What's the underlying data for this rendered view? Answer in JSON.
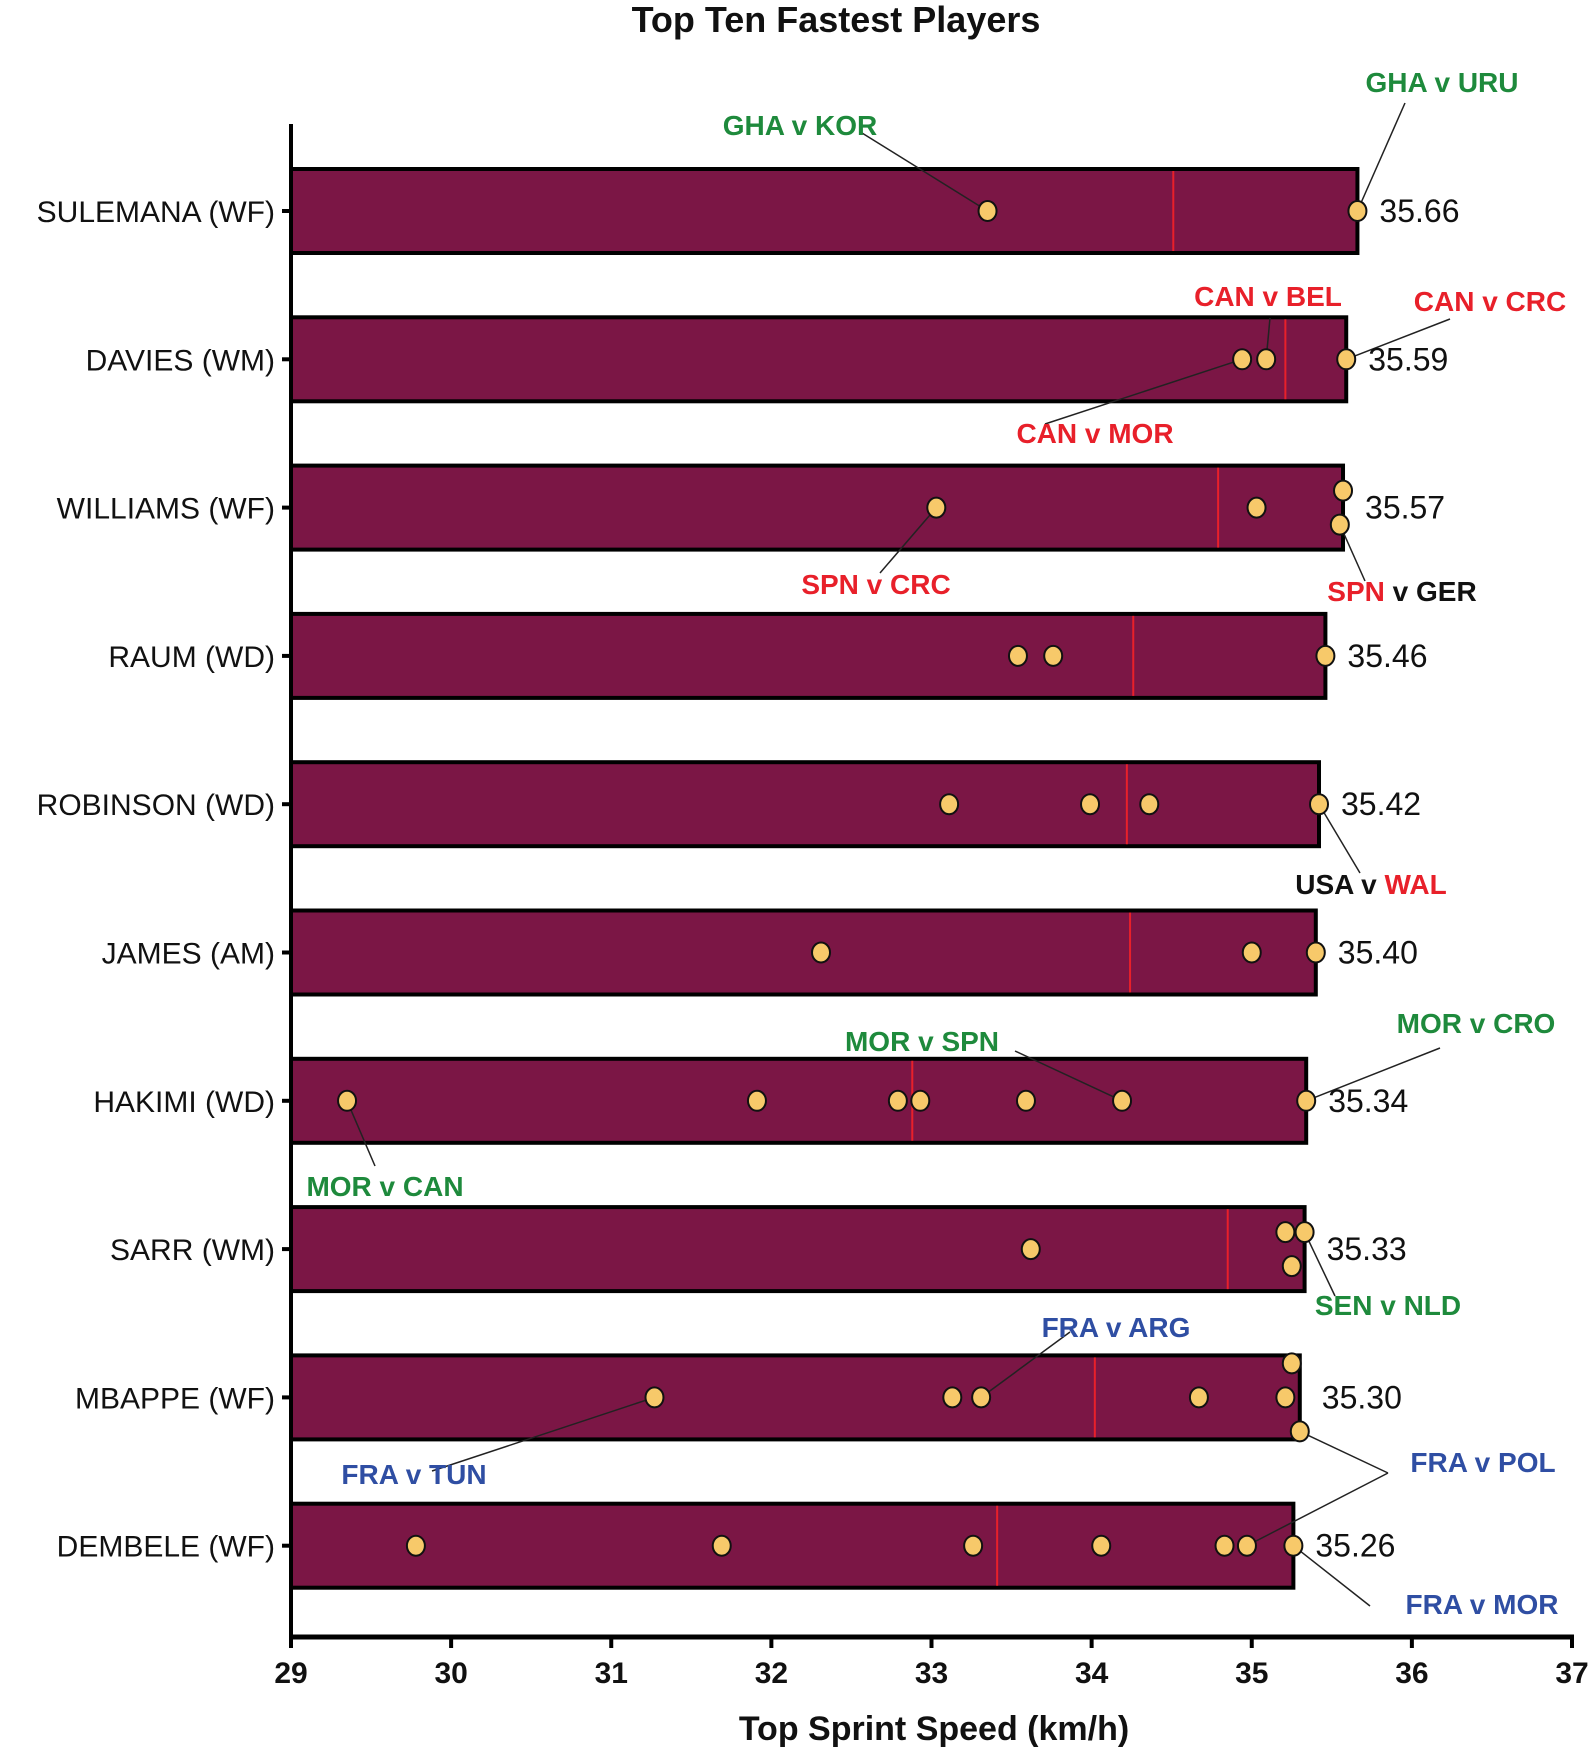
{
  "chart_data": {
    "type": "bar",
    "orientation": "horizontal",
    "title": "Top Ten Fastest Players",
    "xlabel": "Top Sprint Speed (km/h)",
    "ylabel": "",
    "xlim": [
      29,
      37
    ],
    "xticks": [
      29,
      30,
      31,
      32,
      33,
      34,
      35,
      36,
      37
    ],
    "grid": false,
    "legend": "none",
    "colors": {
      "bar": "#7b1645",
      "median_line": "#e8202a",
      "point": "#f7c96a",
      "green": "#1e8a3c",
      "red": "#e8202a",
      "blue": "#2f4ea3",
      "black": "#111111"
    },
    "categories": [
      "SULEMANA (WF)",
      "DAVIES (WM)",
      "WILLIAMS (WF)",
      "RAUM (WD)",
      "ROBINSON (WD)",
      "JAMES (AM)",
      "HAKIMI (WD)",
      "SARR (WM)",
      "MBAPPE (WF)",
      "DEMBELE (WF)"
    ],
    "values": [
      35.66,
      35.59,
      35.57,
      35.46,
      35.42,
      35.4,
      35.34,
      35.33,
      35.3,
      35.26
    ],
    "value_labels": [
      "35.66",
      "35.59",
      "35.57",
      "35.46",
      "35.42",
      "35.40",
      "35.34",
      "35.33",
      "35.30",
      "35.26"
    ],
    "medians": [
      34.51,
      35.21,
      34.79,
      34.26,
      34.22,
      34.24,
      32.88,
      34.85,
      34.02,
      33.41
    ],
    "match_points": [
      [
        {
          "v": 33.35
        },
        {
          "v": 35.66
        }
      ],
      [
        {
          "v": 34.94
        },
        {
          "v": 35.09
        },
        {
          "v": 35.59
        }
      ],
      [
        {
          "v": 33.03
        },
        {
          "v": 35.03
        },
        {
          "v": 35.57,
          "o": -1
        },
        {
          "v": 35.55,
          "o": 1
        }
      ],
      [
        {
          "v": 33.54
        },
        {
          "v": 33.76
        },
        {
          "v": 35.46
        }
      ],
      [
        {
          "v": 33.11
        },
        {
          "v": 33.99
        },
        {
          "v": 34.36
        },
        {
          "v": 35.42
        }
      ],
      [
        {
          "v": 32.31
        },
        {
          "v": 35.0
        },
        {
          "v": 35.4
        }
      ],
      [
        {
          "v": 29.35
        },
        {
          "v": 31.91
        },
        {
          "v": 32.79
        },
        {
          "v": 32.93
        },
        {
          "v": 33.59
        },
        {
          "v": 34.19
        },
        {
          "v": 35.34
        }
      ],
      [
        {
          "v": 33.62
        },
        {
          "v": 35.21,
          "o": -1
        },
        {
          "v": 35.33,
          "o": -1
        },
        {
          "v": 35.25,
          "o": 1
        }
      ],
      [
        {
          "v": 31.27
        },
        {
          "v": 33.13
        },
        {
          "v": 33.31
        },
        {
          "v": 34.67
        },
        {
          "v": 35.25,
          "o": -2
        },
        {
          "v": 35.21
        },
        {
          "v": 35.3,
          "o": 2
        }
      ],
      [
        {
          "v": 29.78
        },
        {
          "v": 31.69
        },
        {
          "v": 33.26
        },
        {
          "v": 34.06
        },
        {
          "v": 34.83
        },
        {
          "v": 34.97
        },
        {
          "v": 35.26
        }
      ]
    ],
    "annotations": [
      {
        "row": 0,
        "point": 0,
        "parts": [
          {
            "t": "GHA v KOR",
            "c": "green"
          }
        ]
      },
      {
        "row": 0,
        "point": 1,
        "parts": [
          {
            "t": "GHA v URU",
            "c": "green"
          }
        ]
      },
      {
        "row": 1,
        "point": 1,
        "parts": [
          {
            "t": "CAN v BEL",
            "c": "red"
          }
        ]
      },
      {
        "row": 1,
        "point": 2,
        "parts": [
          {
            "t": "CAN v CRC",
            "c": "red"
          }
        ]
      },
      {
        "row": 1,
        "point": 0,
        "parts": [
          {
            "t": "CAN v MOR",
            "c": "red"
          }
        ]
      },
      {
        "row": 2,
        "point": 0,
        "parts": [
          {
            "t": "SPN v CRC",
            "c": "red"
          }
        ]
      },
      {
        "row": 2,
        "point": 3,
        "parts": [
          {
            "t": "SPN",
            "c": "red"
          },
          {
            "t": " v GER",
            "c": "black"
          }
        ]
      },
      {
        "row": 4,
        "point": 3,
        "parts": [
          {
            "t": "USA v ",
            "c": "black"
          },
          {
            "t": "WAL",
            "c": "red"
          }
        ]
      },
      {
        "row": 6,
        "point": 5,
        "parts": [
          {
            "t": "MOR v SPN",
            "c": "green"
          }
        ]
      },
      {
        "row": 6,
        "point": 6,
        "parts": [
          {
            "t": "MOR v CRO",
            "c": "green"
          }
        ]
      },
      {
        "row": 6,
        "point": 0,
        "parts": [
          {
            "t": "MOR v CAN",
            "c": "green"
          }
        ]
      },
      {
        "row": 7,
        "point": 2,
        "parts": [
          {
            "t": "SEN v NLD",
            "c": "green"
          }
        ]
      },
      {
        "row": 8,
        "point": 2,
        "parts": [
          {
            "t": "FRA v ARG",
            "c": "blue"
          }
        ]
      },
      {
        "row": 8,
        "point": 0,
        "parts": [
          {
            "t": "FRA v TUN",
            "c": "blue"
          }
        ]
      },
      {
        "row": 8,
        "point": 6,
        "parts": [
          {
            "t": "FRA v POL",
            "c": "blue"
          }
        ]
      },
      {
        "row": 9,
        "point": 6,
        "parts": [
          {
            "t": "FRA v MOR",
            "c": "blue"
          }
        ]
      }
    ]
  }
}
